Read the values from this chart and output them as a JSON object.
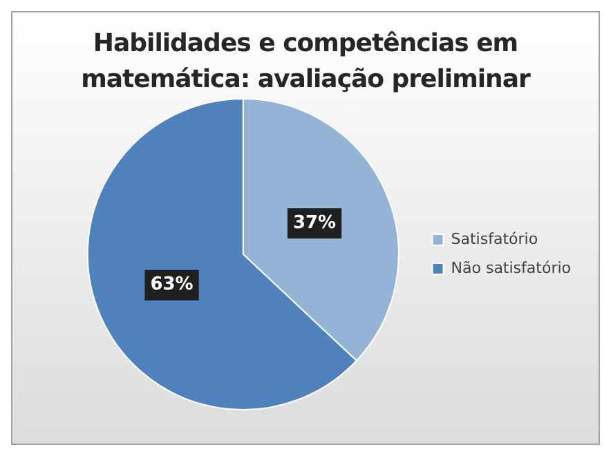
{
  "chart_data": {
    "type": "pie",
    "title": "Habilidades e competências em matemática:  avaliação preliminar",
    "categories": [
      "Satisfatório",
      "Não satisfatório"
    ],
    "values": [
      37,
      63
    ],
    "colors": [
      "#95b3d7",
      "#4f81bd"
    ],
    "value_labels": [
      "37%",
      "63%"
    ],
    "legend": "right"
  }
}
